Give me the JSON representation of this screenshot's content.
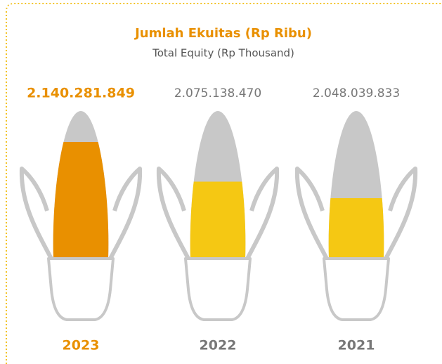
{
  "chart_data": {
    "type": "pictograph",
    "title": "Jumlah Ekuitas (Rp Ribu)",
    "subtitle": "Total Equity (Rp Thousand)",
    "categories": [
      "2023",
      "2022",
      "2021"
    ],
    "values": [
      2140281849,
      2075138470,
      2048039833
    ],
    "value_labels": [
      "2.140.281.849",
      "2.075.138.470",
      "2.048.039.833"
    ],
    "colors": [
      "#e99000",
      "#f5c813",
      "#f5c813"
    ],
    "highlight_index": 0,
    "highlight_color": "#e99000"
  }
}
